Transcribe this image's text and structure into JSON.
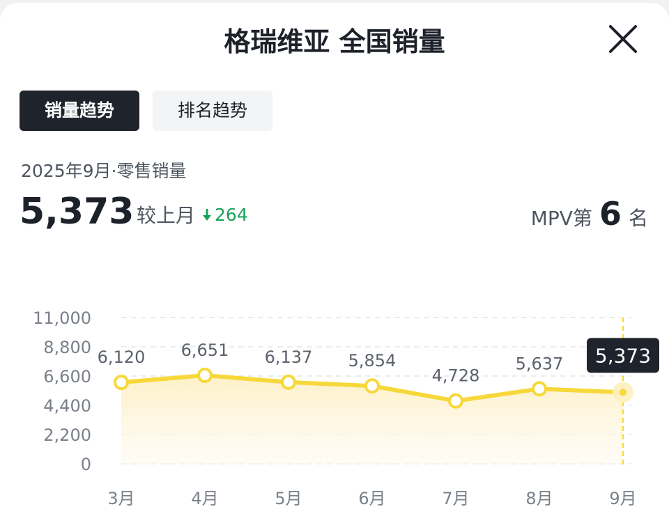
{
  "header": {
    "title": "格瑞维亚 全国销量"
  },
  "tabs": [
    {
      "label": "销量趋势",
      "active": true
    },
    {
      "label": "排名趋势",
      "active": false
    }
  ],
  "summary": {
    "period_label": "2025年9月·零售销量",
    "value": "5,373",
    "compare_label": "较上月",
    "delta": "264",
    "delta_direction": "down",
    "rank_prefix": "MPV第",
    "rank_value": "6",
    "rank_suffix": "名"
  },
  "colors": {
    "line": "#f7d83a",
    "area_top": "#fdf3cf",
    "down": "#1aa25a",
    "tooltip_bg": "#1f232b"
  },
  "chart_data": {
    "type": "line",
    "categories": [
      "3月",
      "4月",
      "5月",
      "6月",
      "7月",
      "8月",
      "9月"
    ],
    "values": [
      6120,
      6651,
      6137,
      5854,
      4728,
      5637,
      5373
    ],
    "value_labels": [
      "6,120",
      "6,651",
      "6,137",
      "5,854",
      "4,728",
      "5,637",
      "5,373"
    ],
    "y_ticks": [
      0,
      2200,
      4400,
      6600,
      8800,
      11000
    ],
    "y_tick_labels": [
      "0",
      "2,200",
      "4,400",
      "6,600",
      "8,800",
      "11,000"
    ],
    "ylim": [
      0,
      11000
    ],
    "grid": true,
    "highlight_index": 6,
    "tooltip": "5,373"
  }
}
